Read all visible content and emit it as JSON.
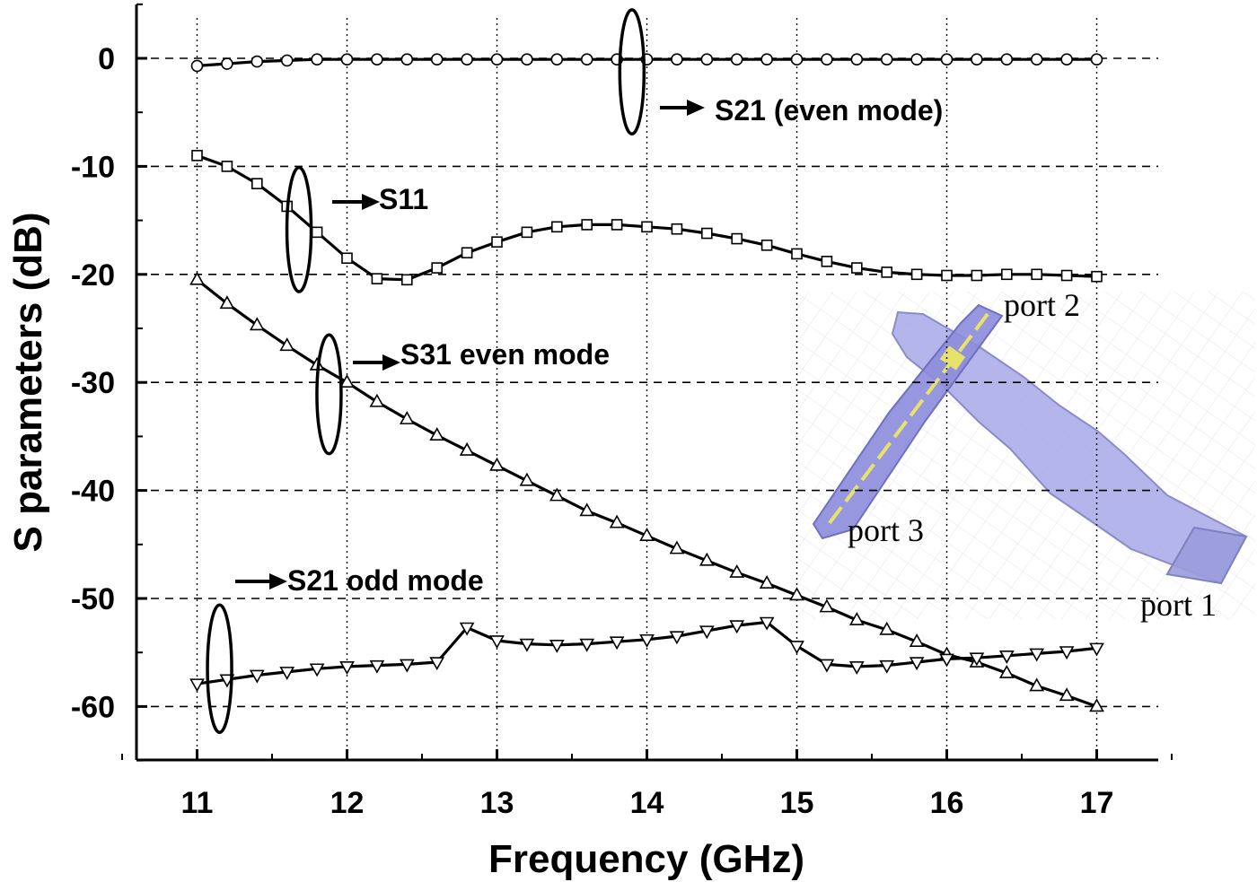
{
  "chart_data": {
    "type": "line",
    "xlabel": "Frequency (GHz)",
    "ylabel": "S parameters (dB)",
    "xlim": [
      10.6,
      17.4
    ],
    "ylim": [
      -65,
      5
    ],
    "xticks": [
      11,
      12,
      13,
      14,
      15,
      16,
      17
    ],
    "yticks": [
      0,
      -10,
      -20,
      -30,
      -40,
      -50,
      -60
    ],
    "grid": "dashed horizontal at y ticks, dotted vertical at x ticks",
    "x": [
      11.0,
      11.2,
      11.4,
      11.6,
      11.8,
      12.0,
      12.2,
      12.4,
      12.6,
      12.8,
      13.0,
      13.2,
      13.4,
      13.6,
      13.8,
      14.0,
      14.2,
      14.4,
      14.6,
      14.8,
      15.0,
      15.2,
      15.4,
      15.6,
      15.8,
      16.0,
      16.2,
      16.4,
      16.6,
      16.8,
      17.0
    ],
    "series": [
      {
        "marker": "circle",
        "values": [
          -0.7,
          -0.5,
          -0.3,
          -0.2,
          -0.1,
          -0.1,
          -0.1,
          -0.1,
          -0.1,
          -0.1,
          -0.1,
          -0.1,
          -0.1,
          -0.1,
          -0.1,
          -0.1,
          -0.1,
          -0.1,
          -0.1,
          -0.1,
          -0.1,
          -0.1,
          -0.1,
          -0.1,
          -0.1,
          -0.1,
          -0.1,
          -0.1,
          -0.1,
          -0.1,
          -0.1
        ]
      },
      {
        "marker": "square",
        "values": [
          -9.0,
          -10.0,
          -11.6,
          -13.7,
          -16.1,
          -18.5,
          -20.4,
          -20.5,
          -19.4,
          -18.0,
          -17.0,
          -16.1,
          -15.6,
          -15.4,
          -15.4,
          -15.6,
          -15.8,
          -16.2,
          -16.7,
          -17.3,
          -18.1,
          -18.8,
          -19.4,
          -19.8,
          -20.0,
          -20.1,
          -20.1,
          -20.0,
          -20.0,
          -20.1,
          -20.2
        ]
      },
      {
        "marker": "triangle-up",
        "values": [
          -20.5,
          -22.7,
          -24.7,
          -26.6,
          -28.4,
          -30.0,
          -31.8,
          -33.4,
          -34.9,
          -36.3,
          -37.7,
          -39.1,
          -40.5,
          -41.9,
          -43.0,
          -44.2,
          -45.4,
          -46.5,
          -47.6,
          -48.6,
          -49.7,
          -50.8,
          -52.0,
          -52.9,
          -54.0,
          -55.2,
          -55.9,
          -56.9,
          -58.1,
          -59.0,
          -60.0
        ]
      },
      {
        "marker": "triangle-down",
        "values": [
          -57.9,
          -57.5,
          -57.1,
          -56.8,
          -56.5,
          -56.3,
          -56.2,
          -56.1,
          -55.9,
          -52.7,
          -53.9,
          -54.2,
          -54.3,
          -54.2,
          -54.0,
          -53.8,
          -53.5,
          -53.0,
          -52.5,
          -52.2,
          -54.4,
          -56.1,
          -56.3,
          -56.2,
          -55.9,
          -55.6,
          -55.5,
          -55.3,
          -55.1,
          -54.9,
          -54.6
        ]
      }
    ],
    "annotations": [
      {
        "text": "S21 (even mode)",
        "ellipse_x": 13.9,
        "ellipse_y": [
          -7,
          4.5
        ]
      },
      {
        "text": "S11",
        "ellipse_x": 11.68,
        "ellipse_y": [
          -21.6,
          -10.1
        ]
      },
      {
        "text": "S31 even mode",
        "ellipse_x": 11.88,
        "ellipse_y": [
          -36.6,
          -25.6
        ]
      },
      {
        "text": "S21 odd mode",
        "ellipse_x": 11.15,
        "ellipse_y": [
          -62.4,
          -50.6
        ]
      }
    ],
    "inset": {
      "description_labels": [
        "port 2",
        "port 3",
        "port 1"
      ],
      "colors": {
        "waveguide": "#a7a8e6",
        "line": "#8c8cdc",
        "strip": "#e6e26a"
      }
    }
  }
}
